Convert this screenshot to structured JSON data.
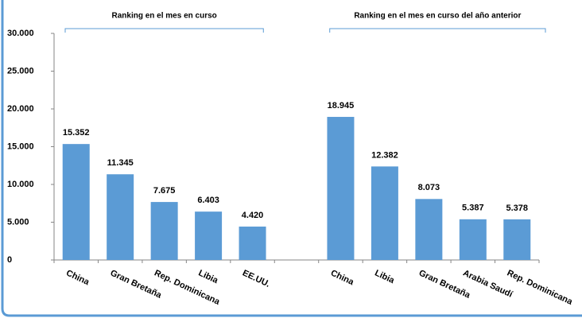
{
  "chart_data": {
    "type": "bar",
    "categories": [
      "China",
      "Gran Bretaña",
      "Rep. Dominicana",
      "Libia",
      "EE.UU.",
      null,
      "China",
      "Libia",
      "Gran Bretaña",
      "Arabia Saudí",
      "Rep. Dominicana"
    ],
    "values": [
      15352,
      11345,
      7675,
      6403,
      4420,
      null,
      18945,
      12382,
      8073,
      5387,
      5378
    ],
    "value_labels": [
      "15.352",
      "11.345",
      "7.675",
      "6.403",
      "4.420",
      null,
      "18.945",
      "12.382",
      "8.073",
      "5.387",
      "5.378"
    ],
    "color": "#5b9bd5",
    "ylim": [
      0,
      30000
    ],
    "yticks": [
      0,
      {
        "value": 5000,
        "label": "5.000"
      },
      {
        "value": 10000,
        "label": "10.000"
      },
      {
        "value": 15000,
        "label": "15.000"
      },
      {
        "value": 20000,
        "label": "20.000"
      },
      {
        "value": 25000,
        "label": "25.000"
      },
      {
        "value": 30000,
        "label": "30.000"
      }
    ],
    "grid": false,
    "annotations": [
      {
        "text": "Ranking en el mes en curso"
      },
      {
        "text": "Ranking en el mes en curso del año anterior"
      }
    ]
  }
}
